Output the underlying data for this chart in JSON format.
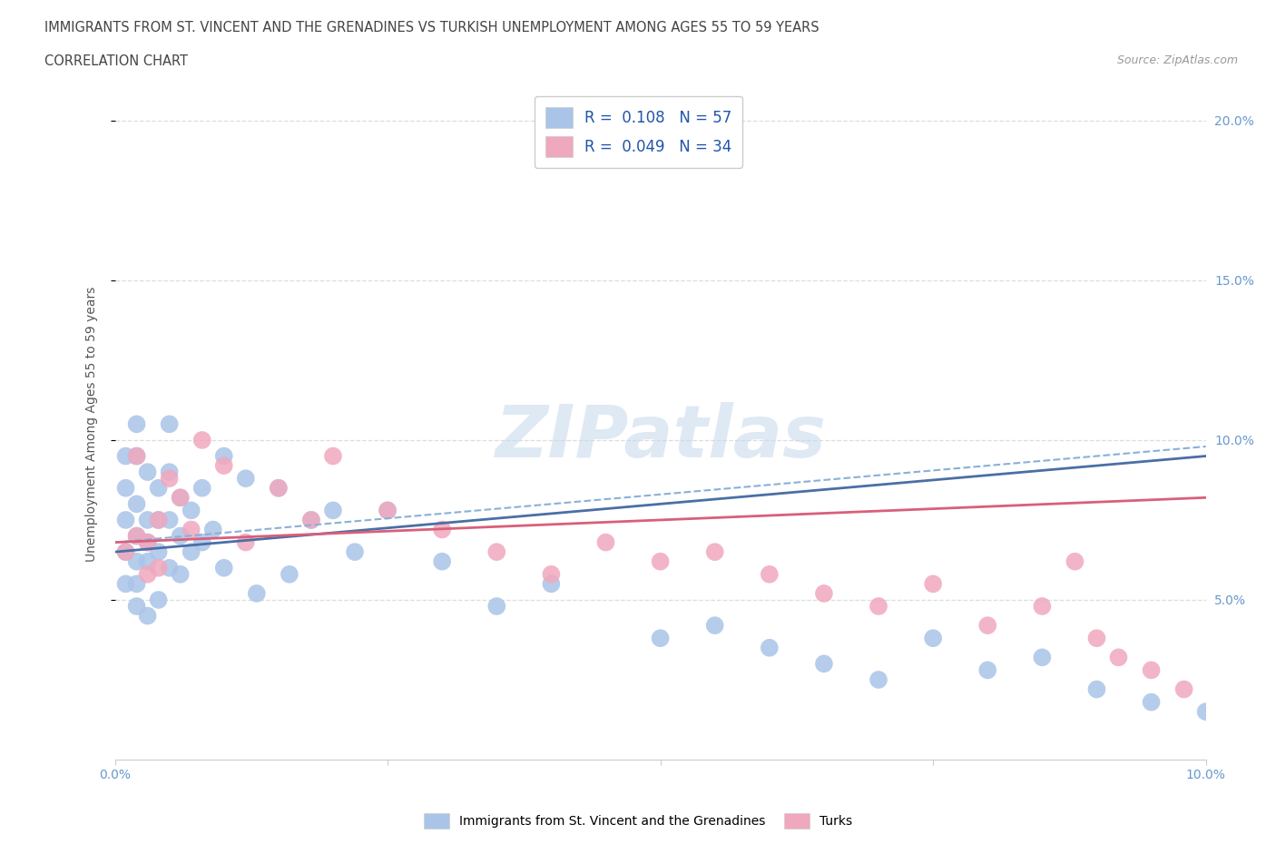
{
  "title_line1": "IMMIGRANTS FROM ST. VINCENT AND THE GRENADINES VS TURKISH UNEMPLOYMENT AMONG AGES 55 TO 59 YEARS",
  "title_line2": "CORRELATION CHART",
  "source_text": "Source: ZipAtlas.com",
  "ylabel": "Unemployment Among Ages 55 to 59 years",
  "xlim": [
    0.0,
    0.1
  ],
  "ylim": [
    0.0,
    0.21
  ],
  "ytick_values": [
    0.05,
    0.1,
    0.15,
    0.2
  ],
  "xtick_positions": [
    0.0,
    0.025,
    0.05,
    0.075,
    0.1
  ],
  "xtick_labels": [
    "0.0%",
    "",
    "",
    "",
    "10.0%"
  ],
  "blue_R": "0.108",
  "blue_N": "57",
  "pink_R": "0.049",
  "pink_N": "34",
  "blue_color": "#aac4e8",
  "pink_color": "#f0a8be",
  "blue_line_color": "#4a6fa5",
  "pink_line_color": "#d95f7a",
  "blue_dash_color": "#8ab0d8",
  "watermark_color": "#c8d8e8",
  "legend1_label": "Immigrants from St. Vincent and the Grenadines",
  "legend2_label": "Turks",
  "blue_x": [
    0.001,
    0.001,
    0.001,
    0.001,
    0.001,
    0.002,
    0.002,
    0.002,
    0.002,
    0.002,
    0.002,
    0.002,
    0.003,
    0.003,
    0.003,
    0.003,
    0.003,
    0.004,
    0.004,
    0.004,
    0.004,
    0.005,
    0.005,
    0.005,
    0.005,
    0.006,
    0.006,
    0.006,
    0.007,
    0.007,
    0.008,
    0.008,
    0.009,
    0.01,
    0.01,
    0.012,
    0.013,
    0.015,
    0.016,
    0.018,
    0.02,
    0.022,
    0.025,
    0.03,
    0.035,
    0.04,
    0.05,
    0.055,
    0.06,
    0.065,
    0.07,
    0.075,
    0.08,
    0.085,
    0.09,
    0.095,
    0.1
  ],
  "blue_y": [
    0.095,
    0.085,
    0.075,
    0.065,
    0.055,
    0.105,
    0.095,
    0.08,
    0.07,
    0.062,
    0.055,
    0.048,
    0.09,
    0.075,
    0.068,
    0.062,
    0.045,
    0.085,
    0.075,
    0.065,
    0.05,
    0.105,
    0.09,
    0.075,
    0.06,
    0.082,
    0.07,
    0.058,
    0.078,
    0.065,
    0.085,
    0.068,
    0.072,
    0.095,
    0.06,
    0.088,
    0.052,
    0.085,
    0.058,
    0.075,
    0.078,
    0.065,
    0.078,
    0.062,
    0.048,
    0.055,
    0.038,
    0.042,
    0.035,
    0.03,
    0.025,
    0.038,
    0.028,
    0.032,
    0.022,
    0.018,
    0.015
  ],
  "pink_x": [
    0.001,
    0.002,
    0.002,
    0.003,
    0.003,
    0.004,
    0.004,
    0.005,
    0.006,
    0.007,
    0.008,
    0.01,
    0.012,
    0.015,
    0.018,
    0.02,
    0.025,
    0.03,
    0.035,
    0.04,
    0.045,
    0.05,
    0.055,
    0.06,
    0.065,
    0.07,
    0.075,
    0.08,
    0.085,
    0.088,
    0.09,
    0.092,
    0.095,
    0.098
  ],
  "pink_y": [
    0.065,
    0.07,
    0.095,
    0.068,
    0.058,
    0.075,
    0.06,
    0.088,
    0.082,
    0.072,
    0.1,
    0.092,
    0.068,
    0.085,
    0.075,
    0.095,
    0.078,
    0.072,
    0.065,
    0.058,
    0.068,
    0.062,
    0.065,
    0.058,
    0.052,
    0.048,
    0.055,
    0.042,
    0.048,
    0.062,
    0.038,
    0.032,
    0.028,
    0.022
  ],
  "blue_solid_trend_x": [
    0.0,
    0.1
  ],
  "blue_solid_trend_y": [
    0.065,
    0.095
  ],
  "blue_dash_trend_x": [
    0.0,
    0.1
  ],
  "blue_dash_trend_y": [
    0.068,
    0.098
  ],
  "pink_solid_trend_x": [
    0.0,
    0.1
  ],
  "pink_solid_trend_y": [
    0.068,
    0.082
  ],
  "grid_color": "#dddddd",
  "background_color": "#ffffff",
  "title_color": "#444444",
  "axis_label_color": "#555555",
  "tick_color": "#6699cc",
  "legend_R_N_color": "#2255aa"
}
